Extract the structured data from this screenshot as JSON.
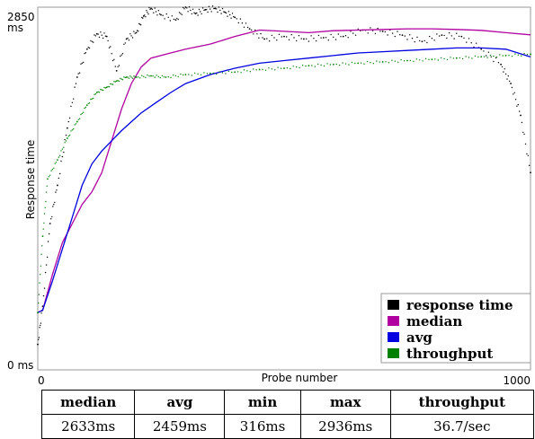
{
  "chart_data": {
    "type": "line",
    "title": "",
    "xlabel": "Probe number",
    "ylabel": "Response time",
    "xlim": [
      0,
      1000
    ],
    "ylim": [
      0,
      2850
    ],
    "x_ticks": [
      "0",
      "1000"
    ],
    "y_top_tick": "2850",
    "y_top_unit": "ms",
    "y_bottom_tick": "0 ms",
    "grid": false,
    "legend_position": "bottom-right",
    "series": [
      {
        "name": "response time",
        "color": "#000000",
        "style": "dots",
        "x": [
          0,
          10,
          25,
          40,
          60,
          80,
          100,
          120,
          140,
          160,
          180,
          200,
          215,
          230,
          250,
          280,
          300,
          320,
          340,
          360,
          380,
          400,
          430,
          460,
          500,
          540,
          580,
          620,
          660,
          700,
          740,
          780,
          820,
          860,
          900,
          940,
          960,
          980,
          1000
        ],
        "values": [
          200,
          500,
          1150,
          1450,
          1900,
          2300,
          2520,
          2640,
          2620,
          2350,
          2600,
          2650,
          2780,
          2840,
          2790,
          2750,
          2850,
          2800,
          2830,
          2840,
          2810,
          2770,
          2680,
          2600,
          2620,
          2600,
          2610,
          2620,
          2670,
          2660,
          2630,
          2580,
          2630,
          2620,
          2520,
          2400,
          2250,
          2000,
          1550
        ]
      },
      {
        "name": "median",
        "color": "#b000a0",
        "style": "line",
        "x": [
          0,
          10,
          30,
          50,
          70,
          90,
          110,
          130,
          150,
          170,
          190,
          210,
          230,
          260,
          300,
          350,
          400,
          450,
          500,
          550,
          600,
          650,
          700,
          750,
          800,
          850,
          900,
          950,
          1000
        ],
        "values": [
          450,
          470,
          750,
          1000,
          1150,
          1300,
          1400,
          1550,
          1800,
          2050,
          2250,
          2380,
          2450,
          2480,
          2520,
          2560,
          2620,
          2670,
          2660,
          2650,
          2665,
          2670,
          2675,
          2680,
          2680,
          2675,
          2668,
          2650,
          2633
        ]
      },
      {
        "name": "avg",
        "color": "#0000e0",
        "style": "line",
        "x": [
          0,
          10,
          30,
          50,
          70,
          90,
          110,
          130,
          150,
          170,
          190,
          210,
          240,
          270,
          300,
          350,
          400,
          450,
          500,
          550,
          600,
          650,
          700,
          750,
          800,
          850,
          900,
          950,
          1000
        ],
        "values": [
          450,
          470,
          700,
          950,
          1200,
          1450,
          1620,
          1720,
          1800,
          1880,
          1950,
          2020,
          2100,
          2180,
          2250,
          2320,
          2370,
          2410,
          2430,
          2450,
          2470,
          2490,
          2500,
          2510,
          2520,
          2530,
          2530,
          2520,
          2459
        ]
      },
      {
        "name": "throughput",
        "color": "#008000",
        "style": "dots",
        "x": [
          0,
          10,
          20,
          40,
          60,
          80,
          100,
          120,
          140,
          160,
          180,
          200,
          230,
          260,
          300,
          350,
          400,
          450,
          500,
          550,
          600,
          650,
          700,
          750,
          800,
          850,
          900,
          950,
          1000
        ],
        "values": [
          450,
          1050,
          1500,
          1650,
          1820,
          1950,
          2080,
          2180,
          2220,
          2270,
          2300,
          2300,
          2310,
          2300,
          2320,
          2330,
          2340,
          2360,
          2370,
          2390,
          2400,
          2410,
          2420,
          2430,
          2440,
          2450,
          2460,
          2470,
          2480
        ]
      }
    ]
  },
  "stats": {
    "headers": [
      "median",
      "avg",
      "min",
      "max",
      "throughput"
    ],
    "values": [
      "2633ms",
      "2459ms",
      "316ms",
      "2936ms",
      "36.7/sec"
    ]
  }
}
